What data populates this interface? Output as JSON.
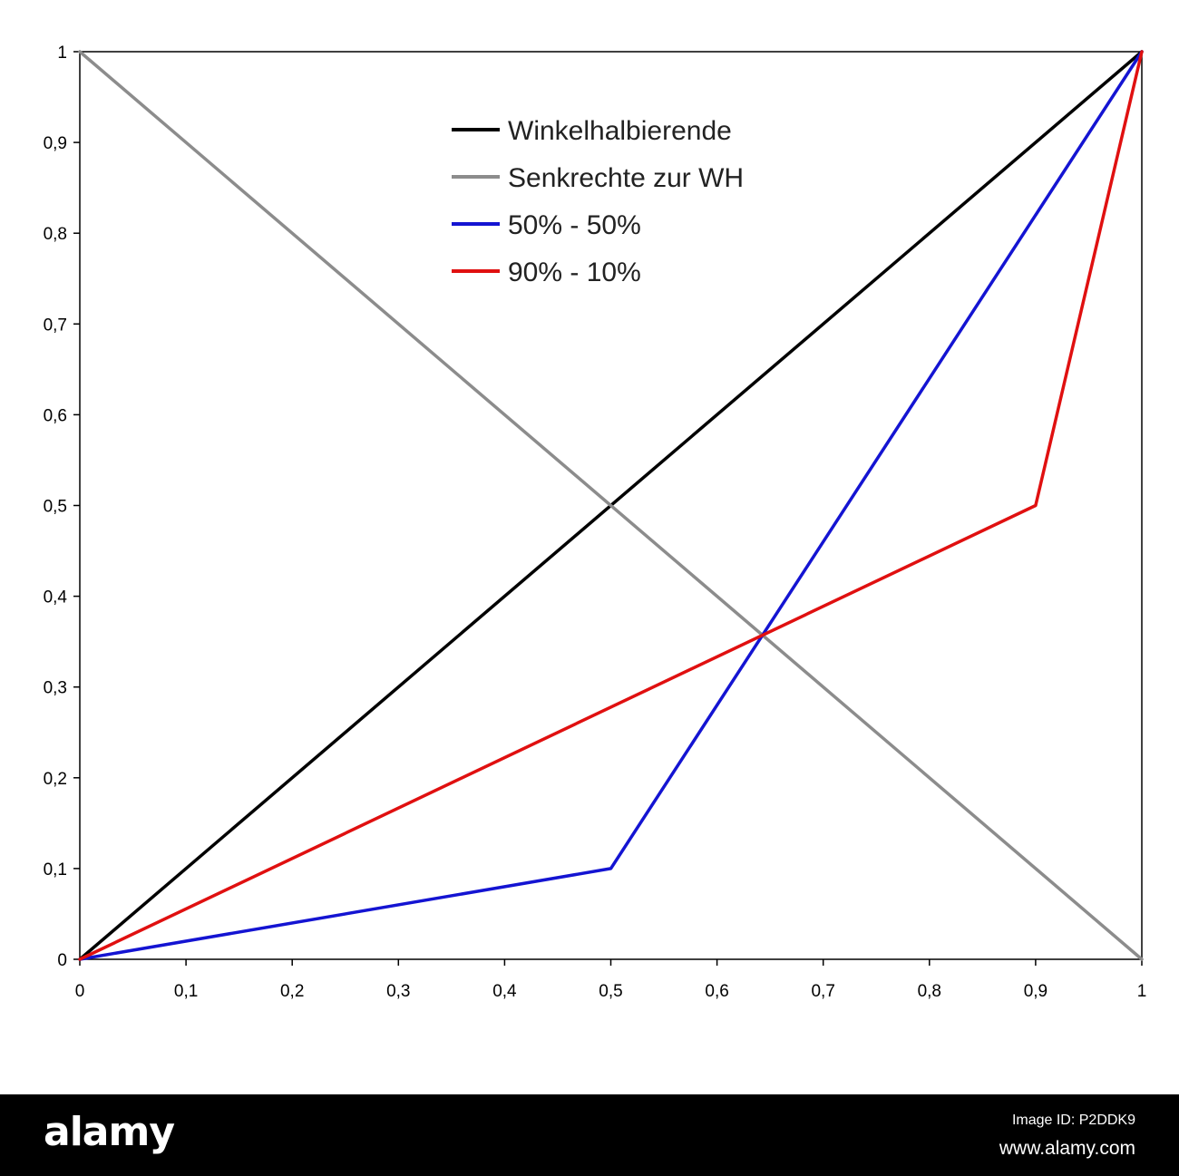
{
  "chart_data": {
    "type": "line",
    "xlim": [
      0,
      1
    ],
    "ylim": [
      0,
      1
    ],
    "x_ticks": [
      "0",
      "0,1",
      "0,2",
      "0,3",
      "0,4",
      "0,5",
      "0,6",
      "0,7",
      "0,8",
      "0,9",
      "1"
    ],
    "y_ticks": [
      "0",
      "0,1",
      "0,2",
      "0,3",
      "0,4",
      "0,5",
      "0,6",
      "0,7",
      "0,8",
      "0,9",
      "1"
    ],
    "grid": false,
    "legend_position": "top-center",
    "series": [
      {
        "name": "Winkelhalbierende",
        "color": "#000000",
        "points": [
          [
            0,
            0
          ],
          [
            1,
            1
          ]
        ]
      },
      {
        "name": "Senkrechte zur WH",
        "color": "#8c8c8c",
        "points": [
          [
            0,
            1
          ],
          [
            1,
            0
          ]
        ]
      },
      {
        "name": "50% - 50%",
        "color": "#1414d2",
        "points": [
          [
            0,
            0
          ],
          [
            0.5,
            0.1
          ],
          [
            1,
            1
          ]
        ]
      },
      {
        "name": "90% - 10%",
        "color": "#e01010",
        "points": [
          [
            0,
            0
          ],
          [
            0.9,
            0.5
          ],
          [
            1,
            1
          ]
        ]
      }
    ]
  },
  "footer": {
    "logo": "alamy",
    "image_id": "Image ID: P2DDK9",
    "site": "www.alamy.com"
  }
}
